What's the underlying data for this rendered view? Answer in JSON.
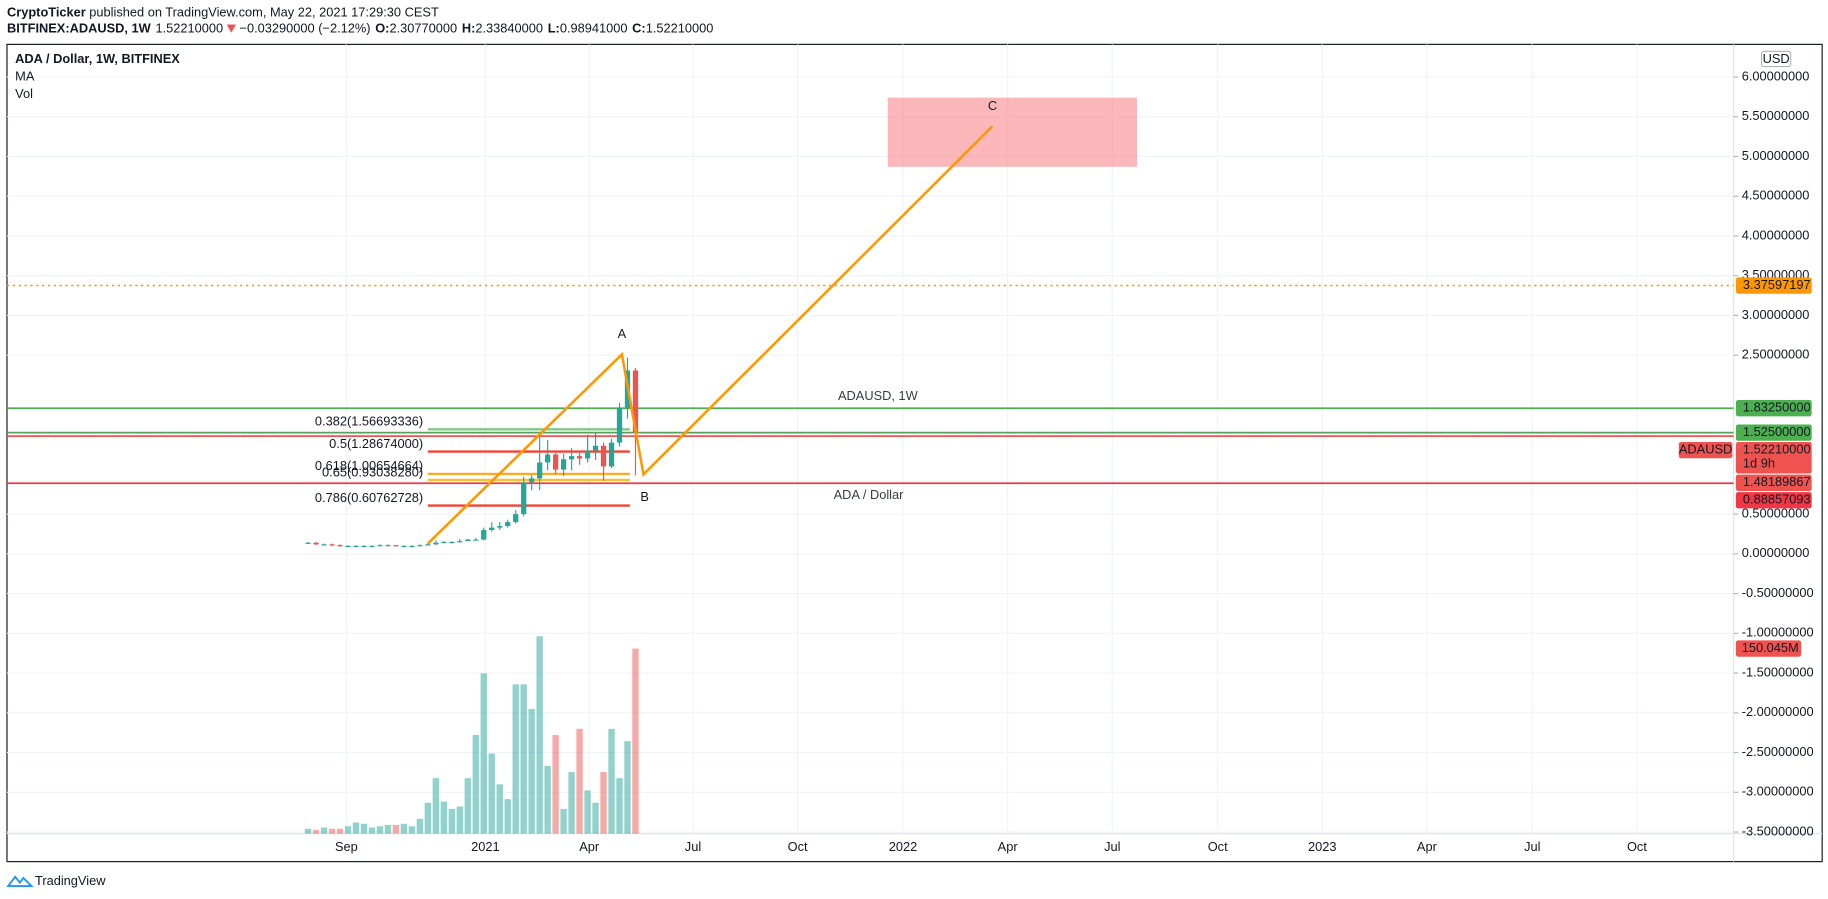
{
  "header": {
    "author": "CryptoTicker",
    "published": "published on TradingView.com, May 22, 2021 17:29:30 CEST",
    "symbol": "BITFINEX:ADAUSD, 1W",
    "last": "1.52210000",
    "change": "−0.03290000 (−2.12%)",
    "ohlc": [
      {
        "key": "O:",
        "value": "2.30770000"
      },
      {
        "key": "H:",
        "value": "2.33840000"
      },
      {
        "key": "L:",
        "value": "0.98941000"
      },
      {
        "key": "C:",
        "value": "1.52210000"
      }
    ]
  },
  "chart_data": {
    "type": "candlestick",
    "legend": [
      "ADA / Dollar, 1W, BITFINEX",
      "MA",
      "Vol"
    ],
    "watermark": "ADAUSD, 1W",
    "watermark_sub": "ADA / Dollar",
    "y_unit": "USD",
    "up_color": "#26a69a",
    "down_color": "#ef5350",
    "grid": true,
    "xlim": [
      -37.7,
      178.5
    ],
    "xticks": [
      {
        "value": 4.8,
        "label": "Sep"
      },
      {
        "value": 22.2,
        "label": "2021"
      },
      {
        "value": 35.2,
        "label": "Apr"
      },
      {
        "value": 48.2,
        "label": "Jul"
      },
      {
        "value": 61.3,
        "label": "Oct"
      },
      {
        "value": 74.5,
        "label": "2022"
      },
      {
        "value": 87.6,
        "label": "Apr"
      },
      {
        "value": 100.7,
        "label": "Jul"
      },
      {
        "value": 113.9,
        "label": "Oct"
      },
      {
        "value": 127.0,
        "label": "2023"
      },
      {
        "value": 140.1,
        "label": "Apr"
      },
      {
        "value": 153.3,
        "label": "Jul"
      },
      {
        "value": 166.4,
        "label": "Oct"
      }
    ],
    "ylim": [
      -3.52,
      6.41
    ],
    "yticks": [
      {
        "value": 6,
        "label": "6.00000000"
      },
      {
        "value": 5.5,
        "label": "5.50000000"
      },
      {
        "value": 5,
        "label": "5.00000000"
      },
      {
        "value": 4.5,
        "label": "4.50000000"
      },
      {
        "value": 4,
        "label": "4.00000000"
      },
      {
        "value": 3.5,
        "label": "3.50000000"
      },
      {
        "value": 3,
        "label": "3.00000000"
      },
      {
        "value": 2.5,
        "label": "2.50000000"
      },
      {
        "value": 0.5,
        "label": "0.50000000"
      },
      {
        "value": 0,
        "label": "0.00000000"
      },
      {
        "value": -0.5,
        "label": "-0.50000000"
      },
      {
        "value": -1,
        "label": "-1.00000000"
      },
      {
        "value": -1.5,
        "label": "-1.50000000"
      },
      {
        "value": -2,
        "label": "-2.00000000"
      },
      {
        "value": -2.5,
        "label": "-2.50000000"
      },
      {
        "value": -3,
        "label": "-3.00000000"
      },
      {
        "value": -3.5,
        "label": "-3.50000000"
      }
    ],
    "open": [
      0.14,
      0.14,
      0.12,
      0.12,
      0.11,
      0.1,
      0.1,
      0.1,
      0.1,
      0.1,
      0.11,
      0.11,
      0.1,
      0.1,
      0.1,
      0.11,
      0.12,
      0.14,
      0.15,
      0.15,
      0.16,
      0.18,
      0.18,
      0.3,
      0.33,
      0.35,
      0.4,
      0.5,
      0.9,
      0.95,
      1.15,
      1.25,
      1.06,
      1.19,
      1.23,
      1.2,
      1.3,
      1.36,
      1.1,
      1.4,
      1.84,
      2.3077
    ],
    "high": [
      0.15,
      0.15,
      0.13,
      0.13,
      0.12,
      0.11,
      0.11,
      0.11,
      0.11,
      0.12,
      0.12,
      0.11,
      0.11,
      0.11,
      0.12,
      0.13,
      0.17,
      0.16,
      0.16,
      0.19,
      0.19,
      0.2,
      0.33,
      0.4,
      0.4,
      0.43,
      0.55,
      0.97,
      0.99,
      1.47,
      1.43,
      1.27,
      1.26,
      1.33,
      1.3,
      1.5,
      1.53,
      1.4,
      1.45,
      1.9,
      2.47,
      2.3384
    ],
    "low": [
      0.13,
      0.11,
      0.11,
      0.1,
      0.09,
      0.09,
      0.09,
      0.09,
      0.09,
      0.1,
      0.1,
      0.09,
      0.09,
      0.09,
      0.1,
      0.11,
      0.11,
      0.14,
      0.13,
      0.14,
      0.17,
      0.17,
      0.17,
      0.28,
      0.3,
      0.33,
      0.38,
      0.47,
      0.8,
      0.8,
      1.05,
      1.0,
      0.98,
      1.05,
      1.12,
      1.15,
      1.18,
      0.92,
      1.08,
      1.35,
      1.7,
      0.98941
    ],
    "close": [
      0.14,
      0.12,
      0.12,
      0.11,
      0.1,
      0.1,
      0.1,
      0.1,
      0.1,
      0.11,
      0.11,
      0.1,
      0.1,
      0.1,
      0.11,
      0.12,
      0.14,
      0.15,
      0.15,
      0.16,
      0.18,
      0.18,
      0.3,
      0.33,
      0.35,
      0.4,
      0.5,
      0.9,
      0.95,
      1.15,
      1.25,
      1.06,
      1.19,
      1.23,
      1.2,
      1.3,
      1.36,
      1.1,
      1.4,
      1.84,
      2.3077,
      1.5221
    ],
    "volume": {
      "values": [
        4,
        3,
        5,
        4,
        4,
        6,
        9,
        8,
        5,
        6,
        7,
        7,
        8,
        6,
        12,
        25,
        45,
        26,
        20,
        22,
        45,
        80,
        130,
        65,
        40,
        28,
        121,
        121,
        101,
        160,
        55,
        80,
        20,
        50,
        85,
        35,
        25,
        50,
        85,
        45,
        75,
        150.045
      ],
      "last_label": "150.045M"
    },
    "fib_levels": [
      {
        "label": "0.382(1.56693336)",
        "value": 1.56693336,
        "color": "#81c784"
      },
      {
        "label": "0.5(1.28674000)",
        "value": 1.28674,
        "color": "#f44336"
      },
      {
        "label": "0.618(1.00654664)",
        "value": 1.00654664,
        "color": "#ffa726"
      },
      {
        "label": "0.65(0.93038280)",
        "value": 0.9303828,
        "color": "#fbc02d"
      },
      {
        "label": "0.786(0.60762728)",
        "value": 0.60762728,
        "color": "#f44336"
      }
    ],
    "fib_range": [
      15,
      40.3
    ],
    "price_lines": [
      {
        "value": 3.37597197,
        "label": "3.37597197",
        "color": "#ff9800",
        "style": "dotted"
      },
      {
        "value": 1.8325,
        "label": "1.83250000",
        "color": "#4caf50",
        "style": "solid"
      },
      {
        "value": 1.525,
        "label": "1.52500000",
        "color": "#4caf50",
        "style": "solid"
      },
      {
        "value": 1.48189867,
        "label": "1.48189867",
        "color": "#ef5350",
        "style": "solid"
      },
      {
        "value": 0.88857093,
        "label": "0.88857093",
        "color": "#f23645",
        "style": "solid"
      }
    ],
    "last_price": {
      "value": 1.5221,
      "label": "1.52210000",
      "symbol": "ADAUSD",
      "countdown": "1d 9h",
      "color": "#ef5350"
    },
    "pattern": {
      "color": "#ff9800",
      "x": [
        15,
        39.3,
        42,
        85.7
      ],
      "y": [
        0.13,
        2.51,
        1.0,
        5.38
      ],
      "labels": [
        null,
        "A",
        "B",
        "C"
      ]
    },
    "target_zone": {
      "x": [
        72.6,
        103.8
      ],
      "y": [
        4.87,
        5.74
      ],
      "color": "#f77c80"
    },
    "footer": "TradingView"
  }
}
